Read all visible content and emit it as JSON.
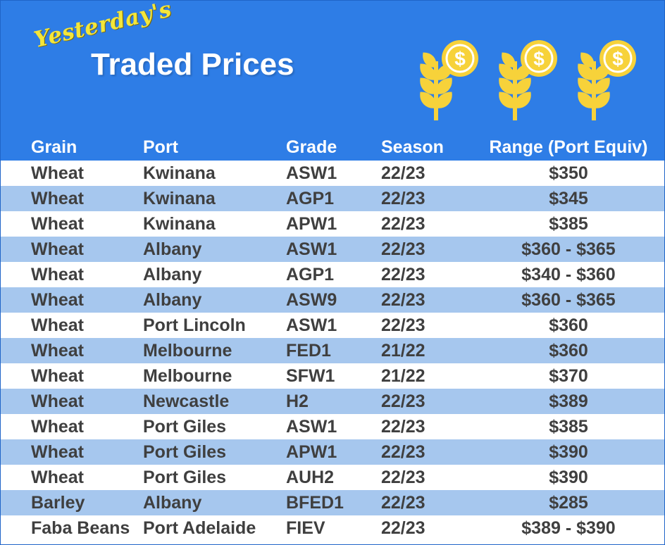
{
  "header": {
    "title_script": "Yesterday's",
    "title_main": "Traded Prices",
    "colors": {
      "banner": "#2e7de6",
      "accent": "#f4e63a",
      "coin": "#f7d23a",
      "row_alt": "#a6c7ee"
    },
    "icons": [
      "wheat-coin-icon",
      "wheat-coin-icon",
      "wheat-coin-icon"
    ],
    "coin_symbol": "$"
  },
  "table": {
    "columns": [
      "Grain",
      "Port",
      "Grade",
      "Season",
      "Range (Port Equiv)"
    ],
    "rows": [
      {
        "grain": "Wheat",
        "port": "Kwinana",
        "grade": "ASW1",
        "season": "22/23",
        "range": "$350"
      },
      {
        "grain": "Wheat",
        "port": "Kwinana",
        "grade": "AGP1",
        "season": "22/23",
        "range": "$345"
      },
      {
        "grain": "Wheat",
        "port": "Kwinana",
        "grade": "APW1",
        "season": "22/23",
        "range": "$385"
      },
      {
        "grain": "Wheat",
        "port": "Albany",
        "grade": "ASW1",
        "season": "22/23",
        "range": "$360 - $365"
      },
      {
        "grain": "Wheat",
        "port": "Albany",
        "grade": "AGP1",
        "season": "22/23",
        "range": "$340 - $360"
      },
      {
        "grain": "Wheat",
        "port": "Albany",
        "grade": "ASW9",
        "season": "22/23",
        "range": "$360 - $365"
      },
      {
        "grain": "Wheat",
        "port": "Port Lincoln",
        "grade": "ASW1",
        "season": "22/23",
        "range": "$360"
      },
      {
        "grain": "Wheat",
        "port": "Melbourne",
        "grade": "FED1",
        "season": "21/22",
        "range": "$360"
      },
      {
        "grain": "Wheat",
        "port": "Melbourne",
        "grade": "SFW1",
        "season": "21/22",
        "range": "$370"
      },
      {
        "grain": "Wheat",
        "port": "Newcastle",
        "grade": "H2",
        "season": "22/23",
        "range": "$389"
      },
      {
        "grain": "Wheat",
        "port": "Port Giles",
        "grade": "ASW1",
        "season": "22/23",
        "range": "$385"
      },
      {
        "grain": "Wheat",
        "port": "Port Giles",
        "grade": "APW1",
        "season": "22/23",
        "range": "$390"
      },
      {
        "grain": "Wheat",
        "port": "Port Giles",
        "grade": "AUH2",
        "season": "22/23",
        "range": "$390"
      },
      {
        "grain": "Barley",
        "port": "Albany",
        "grade": "BFED1",
        "season": "22/23",
        "range": "$285"
      },
      {
        "grain": "Faba Beans",
        "port": "Port Adelaide",
        "grade": "FIEV",
        "season": "22/23",
        "range": "$389 - $390"
      }
    ]
  }
}
